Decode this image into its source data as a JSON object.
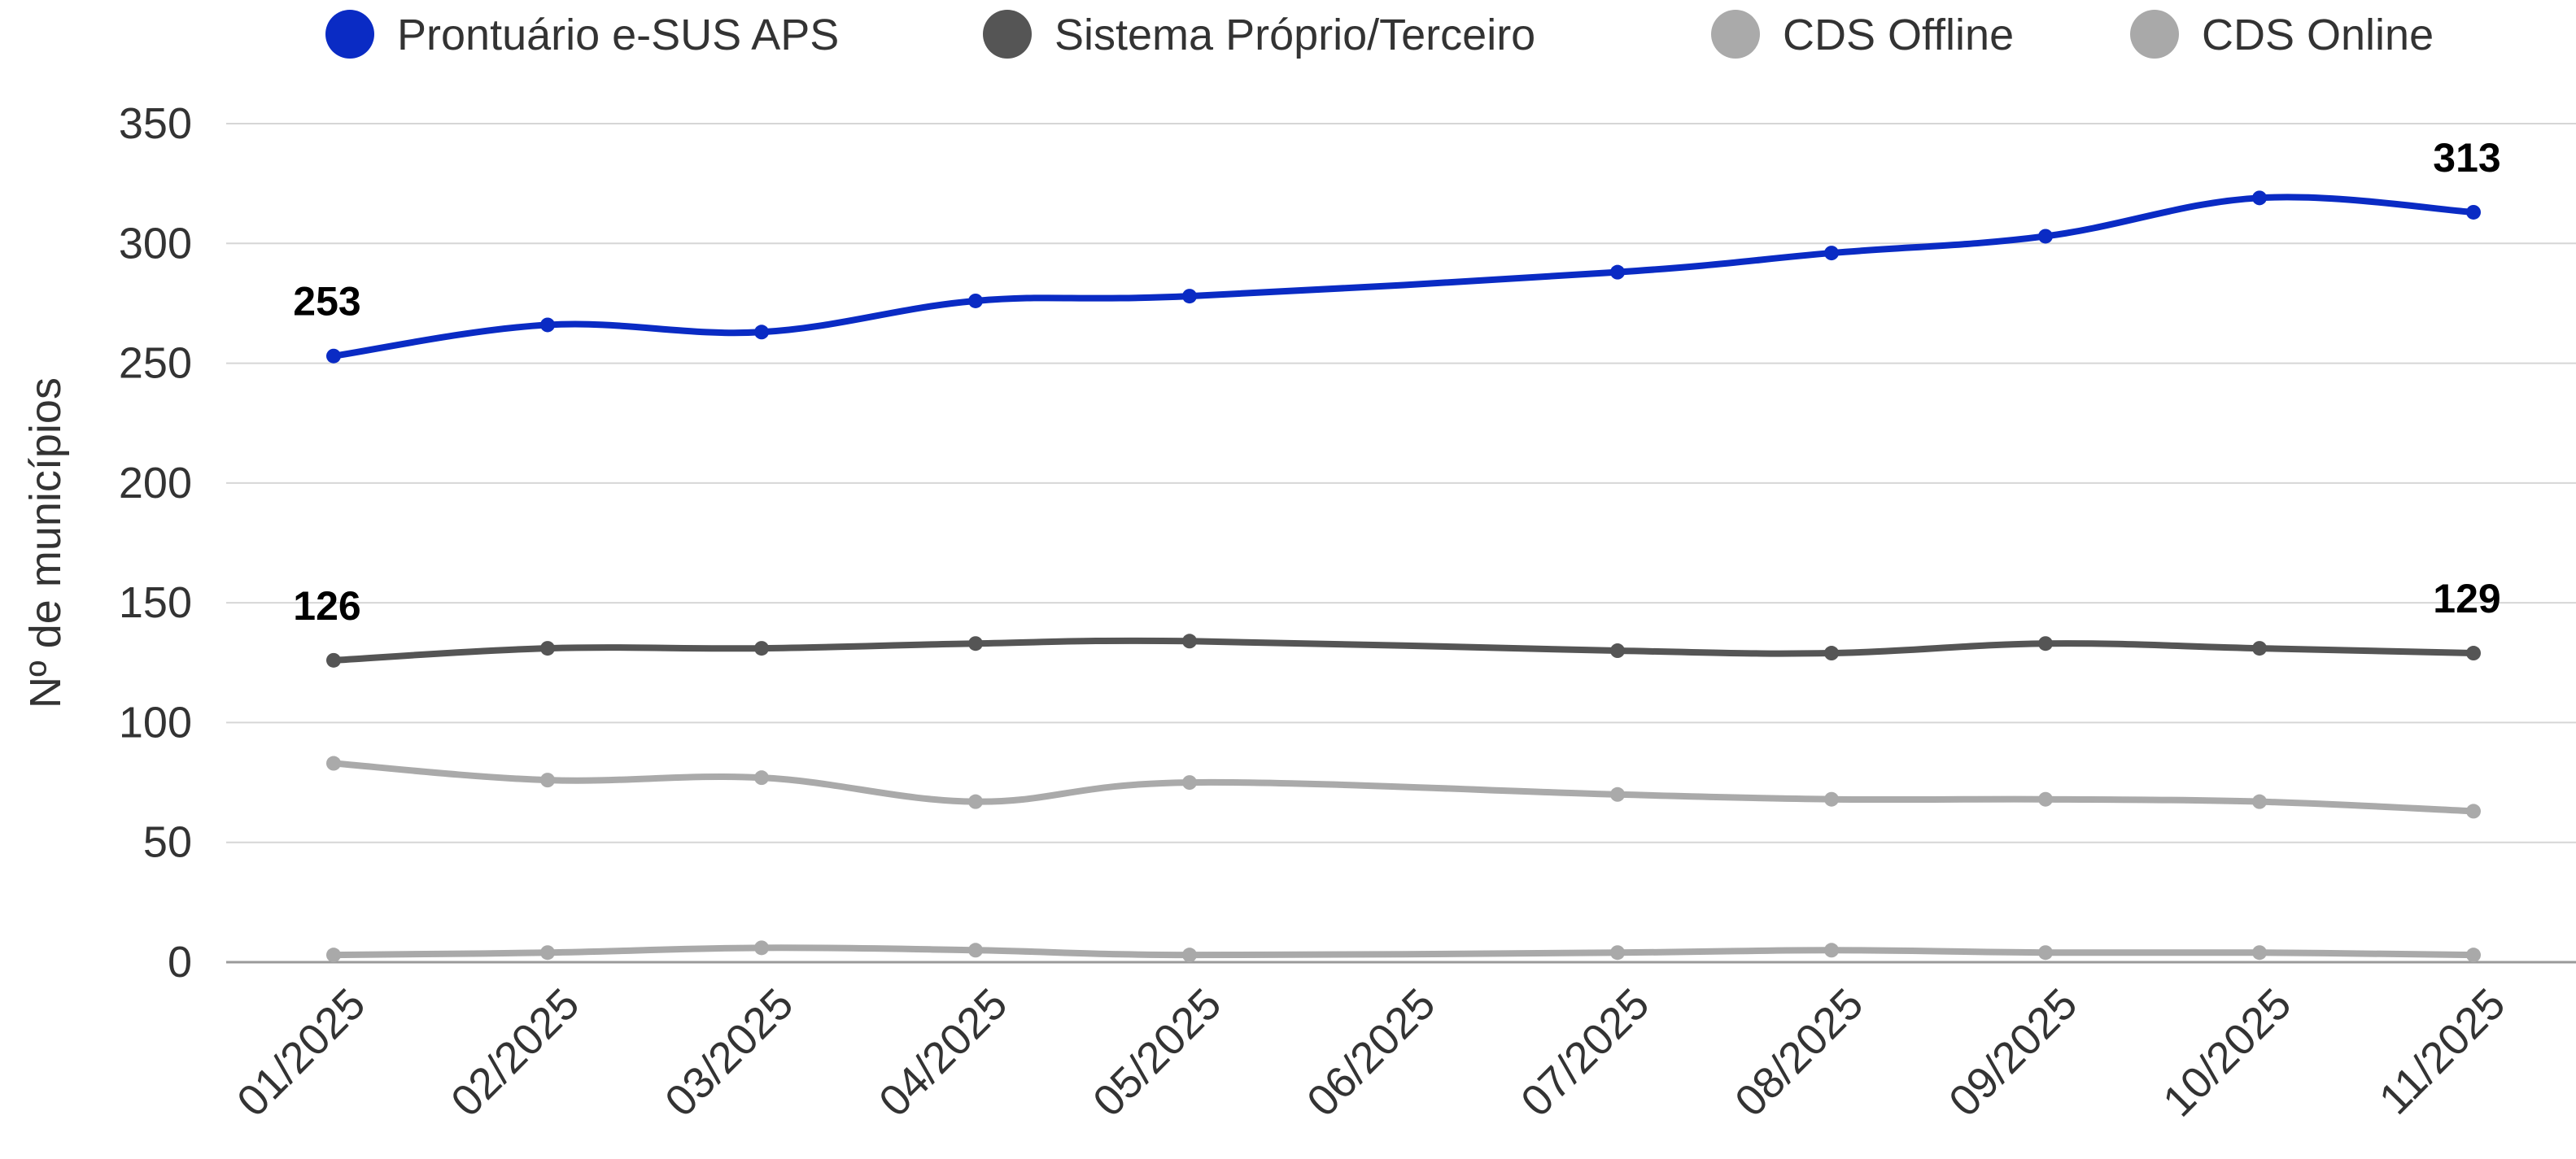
{
  "chart_data": {
    "type": "line",
    "title": "",
    "xlabel": "",
    "ylabel": "Nº de municípios",
    "ylim": [
      0,
      350
    ],
    "yticks": [
      0,
      50,
      100,
      150,
      200,
      250,
      300,
      350
    ],
    "grid": true,
    "legend_position": "top",
    "x": [
      "01/2025",
      "02/2025",
      "03/2025",
      "04/2025",
      "05/2025",
      "06/2025",
      "07/2025",
      "08/2025",
      "09/2025",
      "10/2025",
      "11/2025"
    ],
    "series": [
      {
        "name": "Prontuário e-SUS APS",
        "color": "#0a2bc4",
        "x": [
          "01/2025",
          "02/2025",
          "03/2025",
          "04/2025",
          "05/2025",
          "07/2025",
          "08/2025",
          "09/2025",
          "10/2025",
          "11/2025"
        ],
        "values": [
          253,
          266,
          263,
          276,
          278,
          288,
          296,
          303,
          319,
          313
        ],
        "labels": [
          {
            "x": "01/2025",
            "text": "253"
          },
          {
            "x": "11/2025",
            "text": "313"
          }
        ]
      },
      {
        "name": "Sistema Próprio/Terceiro",
        "color": "#555555",
        "x": [
          "01/2025",
          "02/2025",
          "03/2025",
          "04/2025",
          "05/2025",
          "07/2025",
          "08/2025",
          "09/2025",
          "10/2025",
          "11/2025"
        ],
        "values": [
          126,
          131,
          131,
          133,
          134,
          130,
          129,
          133,
          131,
          129
        ],
        "labels": [
          {
            "x": "01/2025",
            "text": "126"
          },
          {
            "x": "11/2025",
            "text": "129"
          }
        ]
      },
      {
        "name": "CDS Offline",
        "color": "#aaaaaa",
        "x": [
          "01/2025",
          "02/2025",
          "03/2025",
          "04/2025",
          "05/2025",
          "07/2025",
          "08/2025",
          "09/2025",
          "10/2025",
          "11/2025"
        ],
        "values": [
          83,
          76,
          77,
          67,
          75,
          70,
          68,
          68,
          67,
          63
        ],
        "labels": []
      },
      {
        "name": "CDS Online",
        "color": "#a9a9a9",
        "x": [
          "01/2025",
          "02/2025",
          "03/2025",
          "04/2025",
          "05/2025",
          "07/2025",
          "08/2025",
          "09/2025",
          "10/2025",
          "11/2025"
        ],
        "values": [
          3,
          4,
          6,
          5,
          3,
          4,
          5,
          4,
          4,
          3
        ],
        "labels": []
      }
    ]
  }
}
